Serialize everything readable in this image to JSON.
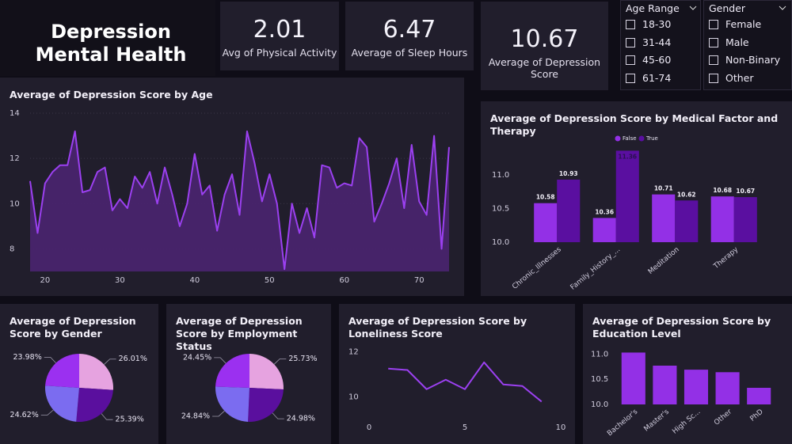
{
  "header": {
    "title": "Depression Mental Health"
  },
  "kpis": [
    {
      "value": 2.01,
      "label": "Avg of Physical Activity"
    },
    {
      "value": 6.47,
      "label": "Average of Sleep Hours"
    },
    {
      "value": 10.67,
      "label": "Average of Depression Score"
    }
  ],
  "slicers": [
    {
      "title": "Age Range",
      "items": [
        "18-30",
        "31-44",
        "45-60",
        "61-74"
      ]
    },
    {
      "title": "Gender",
      "items": [
        "Female",
        "Male",
        "Non-Binary",
        "Other"
      ]
    }
  ],
  "chart_data": [
    {
      "type": "area",
      "title": "Average of Depression Score by Age",
      "x": [
        18,
        19,
        20,
        21,
        22,
        23,
        24,
        25,
        26,
        27,
        28,
        29,
        30,
        31,
        32,
        33,
        34,
        35,
        36,
        37,
        38,
        39,
        40,
        41,
        42,
        43,
        44,
        45,
        46,
        47,
        48,
        49,
        50,
        51,
        52,
        53,
        54,
        55,
        56,
        57,
        58,
        59,
        60,
        61,
        62,
        63,
        64,
        65,
        66,
        67,
        68,
        69,
        70,
        71,
        72,
        73,
        74
      ],
      "values": [
        11.0,
        8.7,
        10.9,
        11.4,
        11.7,
        11.7,
        13.2,
        10.5,
        10.6,
        11.4,
        11.6,
        9.7,
        10.2,
        9.8,
        11.2,
        10.7,
        11.4,
        10.0,
        11.6,
        10.4,
        9.0,
        10.0,
        12.2,
        10.4,
        10.8,
        8.8,
        10.4,
        11.3,
        9.5,
        13.2,
        11.8,
        10.1,
        11.3,
        10.0,
        7.1,
        10.0,
        8.7,
        9.8,
        8.5,
        11.7,
        11.6,
        10.7,
        10.9,
        10.8,
        12.9,
        12.5,
        9.2,
        10.0,
        10.9,
        12.0,
        9.8,
        12.6,
        10.1,
        9.5,
        13.0,
        8.0,
        12.5
      ],
      "color": "#9b40f0",
      "xlim": [
        18,
        74
      ],
      "xticks": [
        20,
        30,
        40,
        50,
        60,
        70
      ],
      "ylim": [
        7,
        14
      ],
      "yticks": [
        8,
        10,
        12,
        14
      ],
      "grid": true
    },
    {
      "type": "bar",
      "title": "Average of Depression Score by Medical Factor and Therapy",
      "categories": [
        "Chronic_Illnesses",
        "Family_History_...",
        "Meditation",
        "Therapy"
      ],
      "series": [
        {
          "name": "False",
          "color": "#9330e6",
          "values": [
            10.58,
            10.36,
            10.71,
            10.68
          ]
        },
        {
          "name": "True",
          "color": "#5a0fa0",
          "values": [
            10.93,
            11.36,
            10.62,
            10.67
          ]
        }
      ],
      "ylim": [
        10,
        11.4
      ],
      "yticks": [
        {
          "value": 10,
          "label": "10.0"
        },
        10.5,
        {
          "value": 11,
          "label": "11.0"
        }
      ],
      "data_labels": true,
      "legend": "top"
    },
    {
      "type": "pie",
      "title": "Average of Depression Score by Gender",
      "values": [
        26.01,
        25.39,
        24.62,
        23.98
      ],
      "value_labels": [
        "26.01%",
        "25.39%",
        "24.62%",
        "23.98%"
      ],
      "colors": [
        "#e6a3e0",
        "#5a0f9e",
        "#7b6cf0",
        "#9b30f0"
      ]
    },
    {
      "type": "pie",
      "title": "Average of Depression Score by Employment Status",
      "values": [
        25.73,
        24.98,
        24.84,
        24.45
      ],
      "value_labels": [
        "25.73%",
        "24.98%",
        "24.84%",
        "24.45%"
      ],
      "colors": [
        "#e6a3e0",
        "#5a0f9e",
        "#7b6cf0",
        "#9b30f0"
      ]
    },
    {
      "type": "line",
      "title": "Average of Depression Score by Loneliness Score",
      "x": [
        1,
        2,
        3,
        4,
        5,
        6,
        7,
        8,
        9
      ],
      "values": [
        11.26,
        11.2,
        10.35,
        10.77,
        10.35,
        11.54,
        10.56,
        10.49,
        9.8
      ],
      "color": "#9b40f0",
      "xlim": [
        0,
        10
      ],
      "xticks": [
        0,
        5,
        10
      ],
      "ylim": [
        9.5,
        12.2
      ],
      "yticks": [
        10,
        12
      ]
    },
    {
      "type": "bar",
      "title": "Average of Depression Score by Education Level",
      "categories": [
        "Bachelor's",
        "Master's",
        "High Sc...",
        "Other",
        "PhD"
      ],
      "values": [
        11.03,
        10.77,
        10.69,
        10.64,
        10.33
      ],
      "color": "#9330e6",
      "ylim": [
        10,
        11.1
      ],
      "yticks": [
        {
          "value": 10,
          "label": "10.0"
        },
        10.5,
        {
          "value": 11,
          "label": "11.0"
        }
      ]
    }
  ]
}
